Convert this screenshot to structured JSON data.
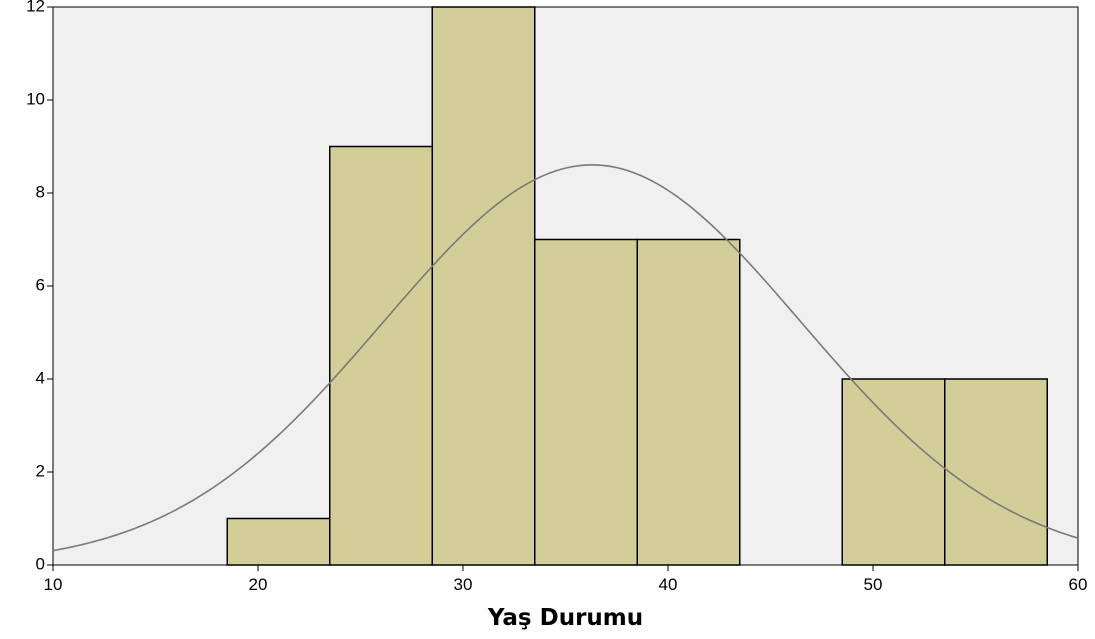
{
  "chart_data": {
    "type": "bar",
    "title": "",
    "xlabel": "Yaş Durumu",
    "ylabel": "",
    "xlim": [
      10,
      60
    ],
    "ylim": [
      0,
      12
    ],
    "x_ticks": [
      10,
      20,
      30,
      40,
      50,
      60
    ],
    "y_ticks": [
      0,
      2,
      4,
      6,
      8,
      10,
      12
    ],
    "bins": [
      {
        "start": 18.5,
        "end": 23.5,
        "value": 1
      },
      {
        "start": 23.5,
        "end": 28.5,
        "value": 9
      },
      {
        "start": 28.5,
        "end": 33.5,
        "value": 12
      },
      {
        "start": 33.5,
        "end": 38.5,
        "value": 7
      },
      {
        "start": 38.5,
        "end": 43.5,
        "value": 7
      },
      {
        "start": 43.5,
        "end": 48.5,
        "value": 0
      },
      {
        "start": 48.5,
        "end": 53.5,
        "value": 4
      },
      {
        "start": 53.5,
        "end": 58.5,
        "value": 4
      }
    ],
    "normal_curve": {
      "mean": 36.3,
      "std_dev": 10.2
    },
    "grid": false,
    "legend": "none",
    "colors": {
      "plot_background": "#f0f0f0",
      "bar_fill": "#d3ce98",
      "bar_stroke": "#000000",
      "curve": "#7a7a7a",
      "axis": "#000000"
    }
  }
}
